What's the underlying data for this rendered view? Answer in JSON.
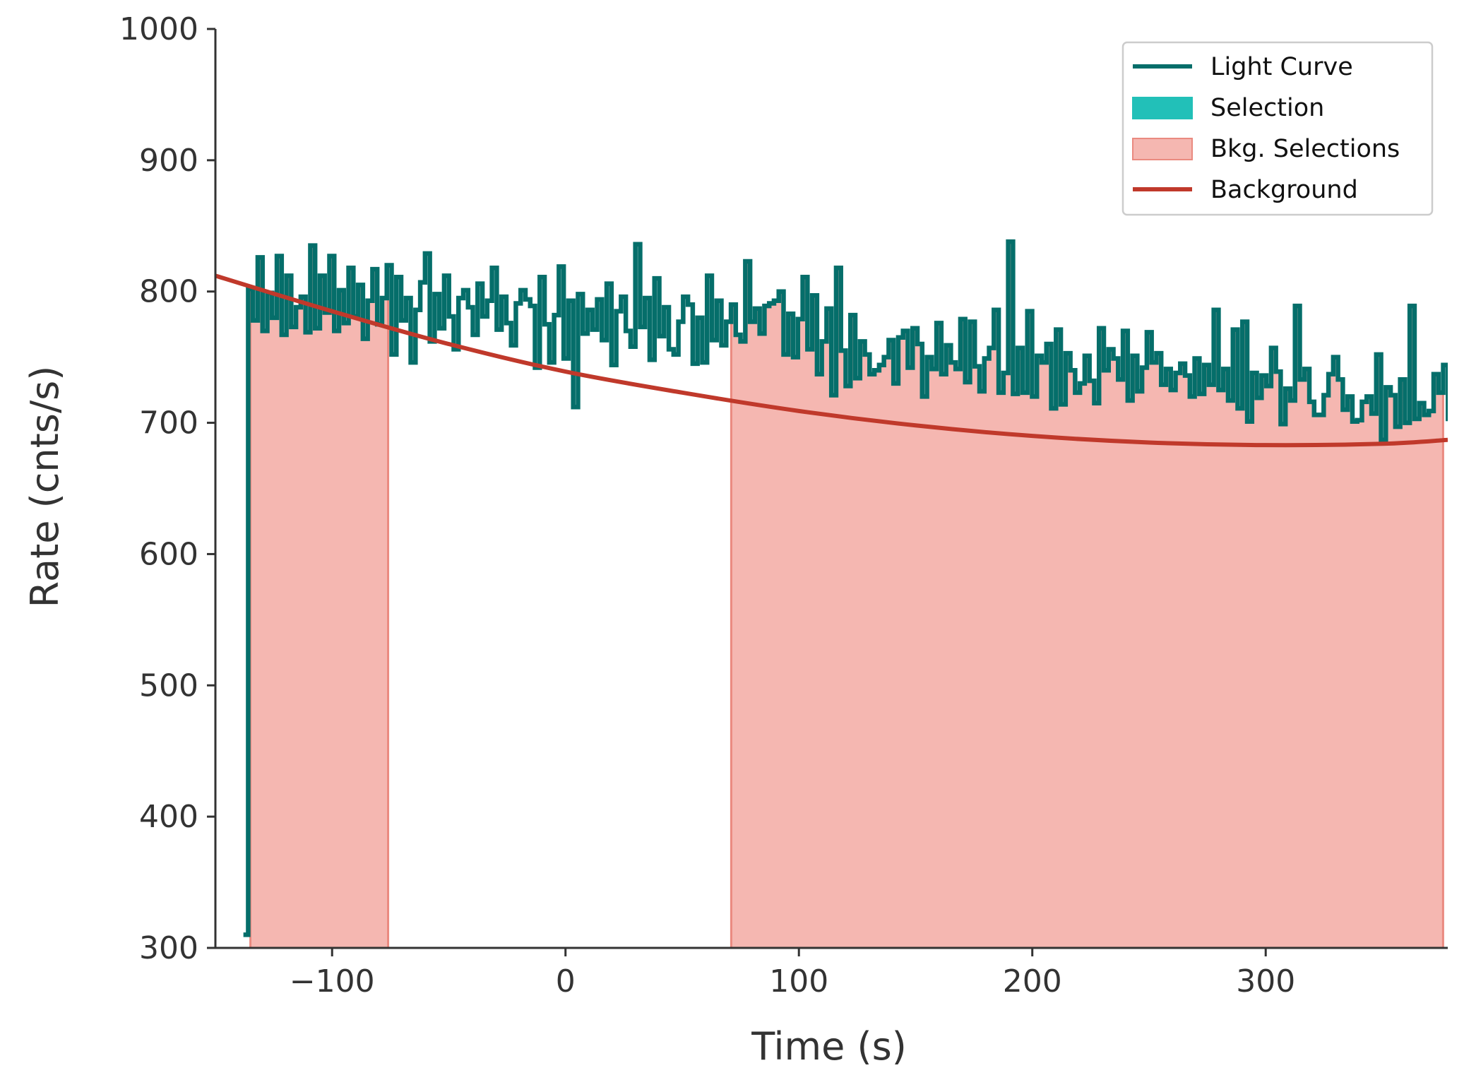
{
  "chart_data": {
    "type": "line",
    "title": "",
    "xlabel": "Time (s)",
    "ylabel": "Rate (cnts/s)",
    "xlim": [
      -150,
      378
    ],
    "ylim": [
      300,
      1000
    ],
    "x_ticks": [
      -100,
      0,
      100,
      200,
      300
    ],
    "x_tick_labels": [
      "−100",
      "0",
      "100",
      "200",
      "300"
    ],
    "y_ticks": [
      300,
      400,
      500,
      600,
      700,
      800,
      900,
      1000
    ],
    "y_tick_labels": [
      "300",
      "400",
      "500",
      "600",
      "700",
      "800",
      "900",
      "1000"
    ],
    "grid": false,
    "legend_position": "top-right",
    "legend": [
      {
        "label": "Light Curve",
        "kind": "line",
        "color": "#056e6a"
      },
      {
        "label": "Selection",
        "kind": "patch",
        "color": "#22c0b8"
      },
      {
        "label": "Bkg. Selections",
        "kind": "patch",
        "color": "#f5b7b1"
      },
      {
        "label": "Background",
        "kind": "line",
        "color": "#c0392b"
      }
    ],
    "colors": {
      "light_curve": "#056e6a",
      "selection": "#22c0b8",
      "bkg_fill": "#f5b7b1",
      "bkg_edge": "#ea8a80",
      "background_line": "#c0392b",
      "axis": "#333333"
    },
    "background_model": {
      "x": [
        -150,
        -100,
        -50,
        0,
        50,
        100,
        150,
        200,
        250,
        300,
        350,
        378
      ],
      "y": [
        812,
        785,
        760,
        739,
        723,
        709,
        698,
        690,
        685,
        683,
        684,
        687
      ]
    },
    "background_selections": [
      {
        "start": -135,
        "end": -76
      },
      {
        "start": 71,
        "end": 376
      }
    ],
    "light_curve": {
      "bin_width": 2.048,
      "x_start": -138,
      "y": [
        310,
        802,
        778,
        826,
        770,
        799,
        780,
        827,
        767,
        812,
        773,
        788,
        796,
        769,
        835,
        772,
        812,
        784,
        827,
        770,
        801,
        776,
        818,
        781,
        805,
        764,
        793,
        817,
        775,
        795,
        820,
        752,
        811,
        778,
        795,
        746,
        786,
        807,
        829,
        762,
        798,
        772,
        812,
        781,
        756,
        795,
        801,
        788,
        767,
        806,
        781,
        793,
        818,
        771,
        796,
        776,
        759,
        791,
        801,
        794,
        789,
        742,
        811,
        775,
        746,
        782,
        819,
        749,
        793,
        712,
        798,
        768,
        786,
        771,
        794,
        763,
        806,
        744,
        785,
        796,
        770,
        758,
        836,
        773,
        795,
        748,
        810,
        766,
        788,
        756,
        752,
        777,
        796,
        790,
        745,
        780,
        746,
        812,
        763,
        793,
        759,
        777,
        790,
        767,
        762,
        823,
        777,
        787,
        768,
        789,
        791,
        793,
        800,
        752,
        783,
        750,
        779,
        811,
        756,
        797,
        737,
        762,
        787,
        721,
        818,
        755,
        728,
        782,
        734,
        762,
        752,
        737,
        740,
        744,
        750,
        763,
        730,
        765,
        770,
        742,
        772,
        760,
        720,
        750,
        741,
        776,
        737,
        759,
        746,
        741,
        779,
        731,
        777,
        743,
        724,
        749,
        757,
        786,
        723,
        738,
        838,
        722,
        757,
        723,
        785,
        720,
        751,
        746,
        760,
        711,
        771,
        714,
        753,
        740,
        723,
        730,
        751,
        732,
        715,
        772,
        740,
        756,
        749,
        733,
        770,
        717,
        751,
        724,
        742,
        769,
        746,
        753,
        729,
        741,
        725,
        738,
        745,
        736,
        720,
        749,
        722,
        744,
        729,
        786,
        725,
        741,
        717,
        771,
        711,
        777,
        701,
        738,
        719,
        736,
        728,
        757,
        739,
        699,
        726,
        717,
        789,
        733,
        741,
        716,
        706,
        706,
        721,
        737,
        750,
        733,
        710,
        720,
        701,
        702,
        716,
        720,
        707,
        752,
        687,
        727,
        721,
        697,
        733,
        700,
        789,
        703,
        715,
        706,
        709,
        737,
        723,
        744,
        703,
        705,
        708,
        703,
        759,
        716,
        741,
        680,
        737,
        692,
        702,
        723,
        710,
        705,
        711,
        740,
        694,
        704,
        709,
        702,
        700,
        685,
        701,
        710,
        715,
        718,
        724,
        703,
        669,
        703,
        722,
        717,
        691,
        690,
        714,
        707,
        700,
        683,
        695,
        708,
        774,
        697,
        689,
        679,
        719,
        703,
        676,
        702,
        688,
        693,
        707,
        683,
        712,
        681,
        700,
        717,
        722,
        696,
        673,
        693,
        666,
        734,
        690,
        690,
        708,
        706,
        677,
        719,
        700,
        709,
        705,
        721,
        679,
        699,
        699,
        672,
        721,
        693,
        706,
        693,
        681,
        714,
        675,
        695,
        696,
        691,
        723,
        697,
        700,
        718,
        700,
        779,
        686,
        707,
        692,
        709,
        684,
        679,
        703,
        705,
        698,
        703,
        681,
        698,
        701,
        700,
        703,
        694,
        696,
        704,
        701,
        716,
        693,
        693,
        709,
        701,
        707,
        668,
        700,
        686,
        712,
        700,
        705,
        702,
        685,
        713,
        688,
        695,
        702,
        694,
        705,
        684,
        698,
        708,
        683,
        697,
        688,
        707,
        684,
        704,
        691,
        697,
        687,
        695,
        702,
        693,
        688,
        701,
        695,
        700,
        698,
        691,
        704,
        687,
        690,
        693,
        699,
        690,
        705,
        681,
        702,
        692,
        691,
        713,
        686,
        715,
        683,
        698,
        696,
        692,
        689,
        704,
        684,
        693,
        695,
        702,
        679,
        690,
        699,
        712,
        687,
        689,
        696,
        684,
        700,
        681,
        687,
        694,
        703,
        692,
        686,
        706,
        681,
        688,
        693,
        685,
        700,
        678,
        698,
        686,
        690,
        707,
        684,
        682,
        696,
        701,
        682,
        688,
        695,
        690,
        698,
        692,
        684,
        700,
        671,
        693,
        682,
        712,
        681,
        690,
        697,
        680,
        693,
        702,
        679,
        688,
        694,
        683,
        709,
        683,
        680,
        690,
        715,
        677,
        689,
        688,
        698,
        683,
        692,
        680,
        713,
        681,
        680,
        706,
        674,
        694,
        709,
        681,
        685,
        669,
        688,
        704,
        691,
        679,
        716,
        681,
        667,
        691,
        704,
        693,
        682,
        730,
        677,
        686,
        718,
        694,
        660,
        707,
        698,
        673,
        710,
        692,
        676,
        747,
        670,
        688,
        696,
        686,
        680,
        690,
        744,
        669,
        726,
        658,
        704,
        672,
        500
      ]
    }
  }
}
